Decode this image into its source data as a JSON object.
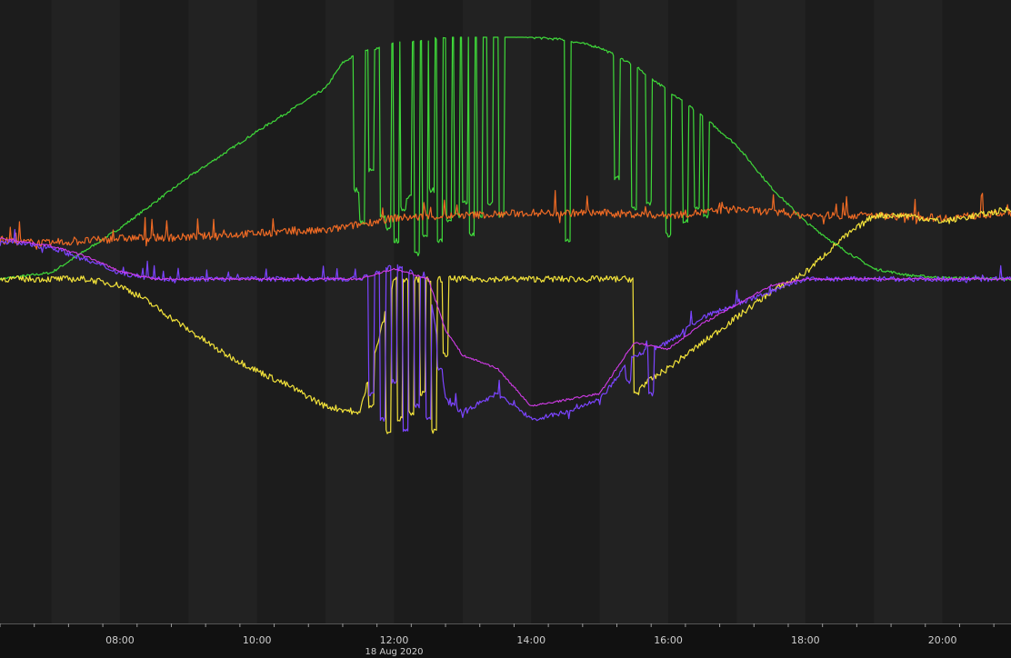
{
  "chart_data": {
    "type": "line",
    "title": "",
    "xlabel": "",
    "ylabel": "",
    "x_axis": {
      "start": "06:15",
      "end": "21:00",
      "date_label": "18 Aug 2020",
      "ticks": [
        {
          "time": "08:00",
          "label": "08:00"
        },
        {
          "time": "10:00",
          "label": "10:00"
        },
        {
          "time": "12:00",
          "label": "12:00"
        },
        {
          "time": "14:00",
          "label": "14:00"
        },
        {
          "time": "16:00",
          "label": "16:00"
        },
        {
          "time": "18:00",
          "label": "18:00"
        },
        {
          "time": "20:00",
          "label": "20:00"
        }
      ]
    },
    "y_range": [
      -1.6,
      1.9
    ],
    "grid": "alternating vertical bands, no horizontal grid",
    "legend": "none",
    "colors": {
      "background": "#1c1c1c",
      "band_alt": "#222222",
      "axis_bar": "#111111",
      "tick_text": "#cfcfcf",
      "green": "#3fd93a",
      "orange": "#ee6a24",
      "yellow": "#f2e23a",
      "blue": "#7b44ff",
      "magenta": "#d13be8"
    },
    "series": [
      {
        "color_key": "green",
        "noise": 0.01,
        "spike": 0,
        "points": [
          [
            "06:15",
            0
          ],
          [
            "07:00",
            0.05
          ],
          [
            "08:00",
            0.4
          ],
          [
            "09:00",
            0.8
          ],
          [
            "10:00",
            1.16
          ],
          [
            "11:00",
            1.5
          ],
          [
            "11:15",
            1.7
          ],
          [
            "11:30",
            1.78
          ],
          [
            "12:00",
            1.85
          ],
          [
            "12:30",
            1.88
          ],
          [
            "13:00",
            1.92
          ],
          [
            "13:30",
            1.92
          ],
          [
            "14:00",
            1.9
          ],
          [
            "14:30",
            1.88
          ],
          [
            "15:00",
            1.82
          ],
          [
            "15:30",
            1.68
          ],
          [
            "16:00",
            1.48
          ],
          [
            "16:30",
            1.28
          ],
          [
            "17:00",
            1.05
          ],
          [
            "17:30",
            0.72
          ],
          [
            "18:00",
            0.45
          ],
          [
            "18:30",
            0.25
          ],
          [
            "19:00",
            0.08
          ],
          [
            "19:30",
            0.03
          ],
          [
            "20:00",
            0.01
          ],
          [
            "21:00",
            0
          ]
        ],
        "dips": [
          [
            "11:27",
            0.7
          ],
          [
            "11:32",
            0.45
          ],
          [
            "11:40",
            0.85
          ],
          [
            "11:50",
            0.5
          ],
          [
            "11:55",
            0.4
          ],
          [
            "12:02",
            0.3
          ],
          [
            "12:08",
            0.55
          ],
          [
            "12:13",
            0.65
          ],
          [
            "12:20",
            0.2
          ],
          [
            "12:27",
            0.35
          ],
          [
            "12:33",
            0.7
          ],
          [
            "12:40",
            0.3
          ],
          [
            "12:48",
            0.45
          ],
          [
            "12:55",
            0.5
          ],
          [
            "13:02",
            0.6
          ],
          [
            "13:08",
            0.35
          ],
          [
            "13:15",
            0.5
          ],
          [
            "13:24",
            0.6
          ],
          [
            "13:34",
            0.5
          ],
          [
            "14:32",
            0.3
          ],
          [
            "15:15",
            0.8
          ],
          [
            "15:30",
            0.55
          ],
          [
            "15:43",
            0.6
          ],
          [
            "16:00",
            0.35
          ],
          [
            "16:15",
            0.45
          ],
          [
            "16:25",
            0.55
          ],
          [
            "16:33",
            0.5
          ]
        ]
      },
      {
        "color_key": "orange",
        "noise": 0.03,
        "spike": 0.12,
        "points": [
          [
            "06:15",
            0.3
          ],
          [
            "07:00",
            0.28
          ],
          [
            "08:00",
            0.32
          ],
          [
            "09:00",
            0.33
          ],
          [
            "10:00",
            0.36
          ],
          [
            "11:00",
            0.38
          ],
          [
            "12:00",
            0.48
          ],
          [
            "13:00",
            0.5
          ],
          [
            "14:00",
            0.52
          ],
          [
            "15:00",
            0.52
          ],
          [
            "16:00",
            0.5
          ],
          [
            "17:00",
            0.55
          ],
          [
            "18:00",
            0.5
          ],
          [
            "19:00",
            0.5
          ],
          [
            "20:00",
            0.48
          ],
          [
            "21:00",
            0.52
          ]
        ],
        "dips": []
      },
      {
        "color_key": "yellow",
        "noise": 0.025,
        "spike": 0,
        "points": [
          [
            "06:15",
            0
          ],
          [
            "07:30",
            0
          ],
          [
            "08:00",
            -0.05
          ],
          [
            "08:20",
            -0.15
          ],
          [
            "09:00",
            -0.4
          ],
          [
            "09:30",
            -0.58
          ],
          [
            "10:00",
            -0.72
          ],
          [
            "10:30",
            -0.85
          ],
          [
            "11:00",
            -1.0
          ],
          [
            "11:30",
            -1.05
          ],
          [
            "12:00",
            0
          ],
          [
            "13:00",
            0
          ],
          [
            "14:00",
            0
          ],
          [
            "15:00",
            0
          ],
          [
            "15:30",
            0
          ],
          [
            "15:35",
            -0.85
          ],
          [
            "16:00",
            -0.7
          ],
          [
            "16:30",
            -0.5
          ],
          [
            "17:00",
            -0.3
          ],
          [
            "17:30",
            -0.1
          ],
          [
            "18:00",
            0.05
          ],
          [
            "18:30",
            0.3
          ],
          [
            "19:00",
            0.5
          ],
          [
            "19:30",
            0.5
          ],
          [
            "20:00",
            0.45
          ],
          [
            "21:00",
            0.55
          ]
        ],
        "dips": [
          [
            "11:27",
            -1.05
          ],
          [
            "11:40",
            -1.0
          ],
          [
            "11:55",
            -1.2
          ],
          [
            "12:05",
            -1.1
          ],
          [
            "12:15",
            -1.05
          ],
          [
            "12:25",
            -0.9
          ],
          [
            "12:35",
            -1.2
          ],
          [
            "12:45",
            -0.6
          ],
          [
            "15:32",
            -0.9
          ]
        ]
      },
      {
        "color_key": "blue",
        "noise": 0.02,
        "spike": 0.08,
        "points": [
          [
            "06:15",
            0.3
          ],
          [
            "07:00",
            0.25
          ],
          [
            "07:30",
            0.15
          ],
          [
            "08:00",
            0.05
          ],
          [
            "08:30",
            0
          ],
          [
            "11:30",
            0
          ],
          [
            "12:00",
            0.1
          ],
          [
            "12:30",
            0
          ],
          [
            "12:45",
            -0.95
          ],
          [
            "13:00",
            -1.05
          ],
          [
            "13:30",
            -0.9
          ],
          [
            "14:00",
            -1.1
          ],
          [
            "14:30",
            -1.05
          ],
          [
            "15:00",
            -0.95
          ],
          [
            "15:30",
            -0.6
          ],
          [
            "16:00",
            -0.5
          ],
          [
            "16:30",
            -0.3
          ],
          [
            "17:00",
            -0.2
          ],
          [
            "17:30",
            -0.1
          ],
          [
            "18:00",
            0
          ],
          [
            "21:00",
            0
          ]
        ],
        "dips": [
          [
            "11:40",
            -0.9
          ],
          [
            "11:50",
            -1.1
          ],
          [
            "12:00",
            -0.8
          ],
          [
            "12:10",
            -1.2
          ],
          [
            "12:20",
            -1.0
          ],
          [
            "12:30",
            -1.1
          ],
          [
            "12:40",
            -0.7
          ],
          [
            "15:25",
            -0.8
          ],
          [
            "15:45",
            -0.9
          ]
        ]
      },
      {
        "color_key": "magenta",
        "noise": 0.008,
        "spike": 0,
        "points": [
          [
            "06:15",
            0.32
          ],
          [
            "07:00",
            0.26
          ],
          [
            "07:30",
            0.18
          ],
          [
            "08:00",
            0.06
          ],
          [
            "08:30",
            0
          ],
          [
            "11:30",
            0
          ],
          [
            "12:00",
            0.08
          ],
          [
            "12:30",
            0
          ],
          [
            "12:45",
            -0.4
          ],
          [
            "13:00",
            -0.6
          ],
          [
            "13:30",
            -0.7
          ],
          [
            "14:00",
            -1.0
          ],
          [
            "14:30",
            -0.95
          ],
          [
            "15:00",
            -0.9
          ],
          [
            "15:30",
            -0.5
          ],
          [
            "16:00",
            -0.55
          ],
          [
            "16:30",
            -0.35
          ],
          [
            "17:00",
            -0.2
          ],
          [
            "17:30",
            -0.05
          ],
          [
            "18:00",
            0
          ],
          [
            "21:00",
            0
          ]
        ],
        "dips": []
      }
    ]
  }
}
